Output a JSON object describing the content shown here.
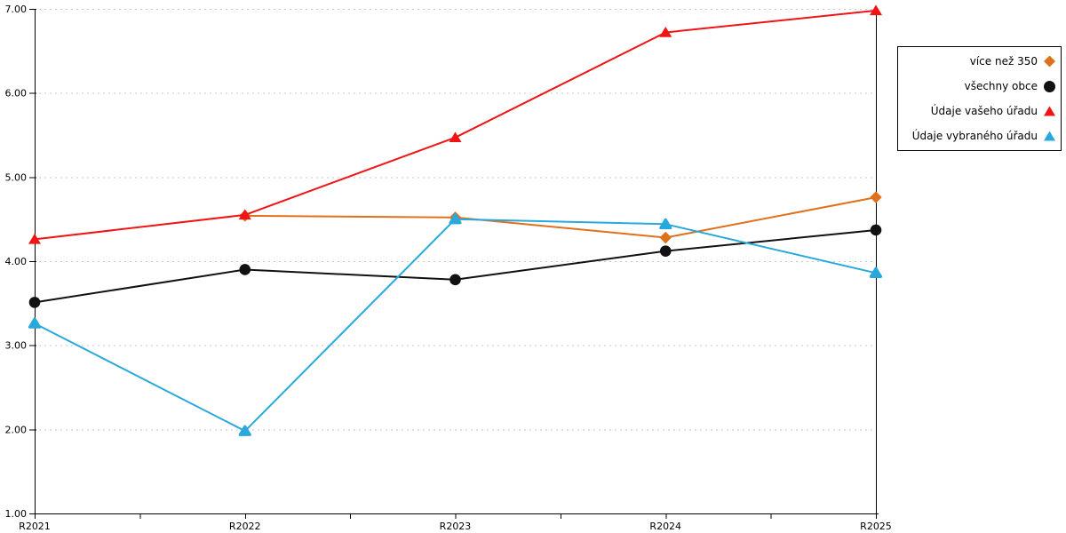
{
  "chart_data": {
    "type": "line",
    "title": "",
    "xlabel": "",
    "ylabel": "",
    "categories": [
      "R2021",
      "R2022",
      "R2023",
      "R2024",
      "R2025"
    ],
    "series": [
      {
        "name": "více než 350",
        "color": "#E0711C",
        "marker": "diamond",
        "values": [
          null,
          4.54,
          4.52,
          4.28,
          4.76
        ]
      },
      {
        "name": "všechny obce",
        "color": "#111111",
        "marker": "circle",
        "values": [
          3.51,
          3.9,
          3.78,
          4.12,
          4.37
        ]
      },
      {
        "name": "Údaje vašeho úřadu",
        "color": "#F01414",
        "marker": "triangle",
        "values": [
          4.26,
          4.55,
          5.47,
          6.72,
          6.98
        ]
      },
      {
        "name": "Údaje vybraného úřadu",
        "color": "#29A8DC",
        "marker": "triangle-rounded",
        "values": [
          3.26,
          1.98,
          4.5,
          4.44,
          3.86
        ]
      }
    ],
    "ylim": [
      1,
      7
    ],
    "ytick_step": 1,
    "ytick_labels": [
      "1.00",
      "2.00",
      "3.00",
      "4.00",
      "5.00",
      "6.00",
      "7.00"
    ],
    "x_minor_ticks_between_labels": 1,
    "grid": "horizontal-dotted",
    "grid_color": "#C6C6C6",
    "axis_color": "#000000",
    "background_color": "#FFFFFF",
    "legend_position": "top-right",
    "legend_entries": [
      "více než 350",
      "všechny obce",
      "Údaje vašeho úřadu",
      "Údaje vybraného úřadu"
    ]
  }
}
